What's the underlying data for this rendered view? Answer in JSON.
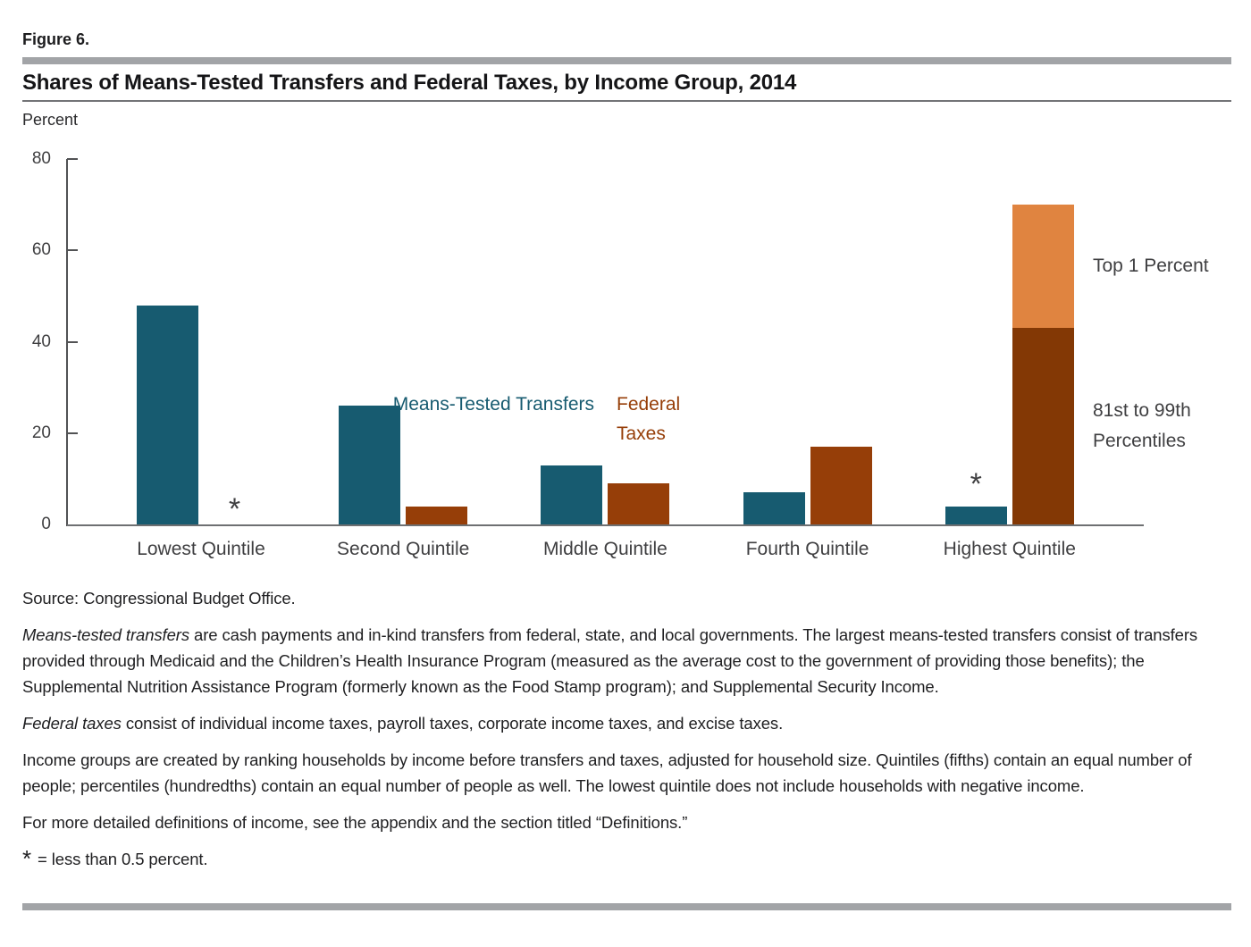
{
  "figure": {
    "label": "Figure 6.",
    "title": "Shares of Means-Tested Transfers and Federal Taxes, by Income Group, 2014"
  },
  "chart_data": {
    "type": "grouped_bar",
    "unit_label": "Percent",
    "ylim": [
      0,
      80
    ],
    "yticks": [
      0,
      20,
      40,
      60,
      80
    ],
    "grid": false,
    "legend_position": "center-of-plot",
    "categories": [
      "Lowest Quintile",
      "Second Quintile",
      "Middle Quintile",
      "Fourth Quintile",
      "Highest Quintile"
    ],
    "series": [
      {
        "name": "Means-Tested Transfers",
        "color": "#175b70",
        "values": [
          48,
          26,
          13,
          7,
          4
        ],
        "asterisk_above": [
          4
        ]
      },
      {
        "name": "Federal Taxes",
        "color": "#963e08",
        "values": [
          null,
          4,
          9,
          17,
          70
        ],
        "asterisk_instead_of_bar": [
          0
        ],
        "stacked_breakdown": {
          "category_index": 4,
          "segments": [
            {
              "label": "81st to 99th Percentiles",
              "value": 43,
              "color": "#833805"
            },
            {
              "label": "Top 1 Percent",
              "value": 27,
              "color": "#e08440"
            }
          ]
        }
      }
    ],
    "asterisk_symbol": "*"
  },
  "footer": {
    "source": "Source: Congressional Budget Office.",
    "notes": [
      {
        "italic_lead": "Means-tested transfers",
        "text": " are cash payments and in-kind transfers from federal, state, and local governments. The largest means-tested transfers consist of transfers provided through Medicaid and the Children’s Health Insurance Program (measured as the average cost to the government of providing those benefits); the Supplemental Nutrition Assistance Program (formerly known as the Food Stamp program); and Supplemental Security Income."
      },
      {
        "italic_lead": "Federal taxes",
        "text": " consist of individual income taxes, payroll taxes, corporate income taxes, and excise taxes."
      },
      {
        "italic_lead": "",
        "text": "Income groups are created by ranking households by income before transfers and taxes, adjusted for household size. Quintiles (fifths) contain an equal number of people; percentiles (hundredths) contain an equal number of people as well. The lowest quintile does not include households with negative income."
      },
      {
        "italic_lead": "",
        "text": "For more detailed definitions of income, see the appendix and the section titled “Definitions.”"
      }
    ],
    "asterisk_note": {
      "symbol": "*",
      "text": "= less than 0.5 percent."
    }
  }
}
